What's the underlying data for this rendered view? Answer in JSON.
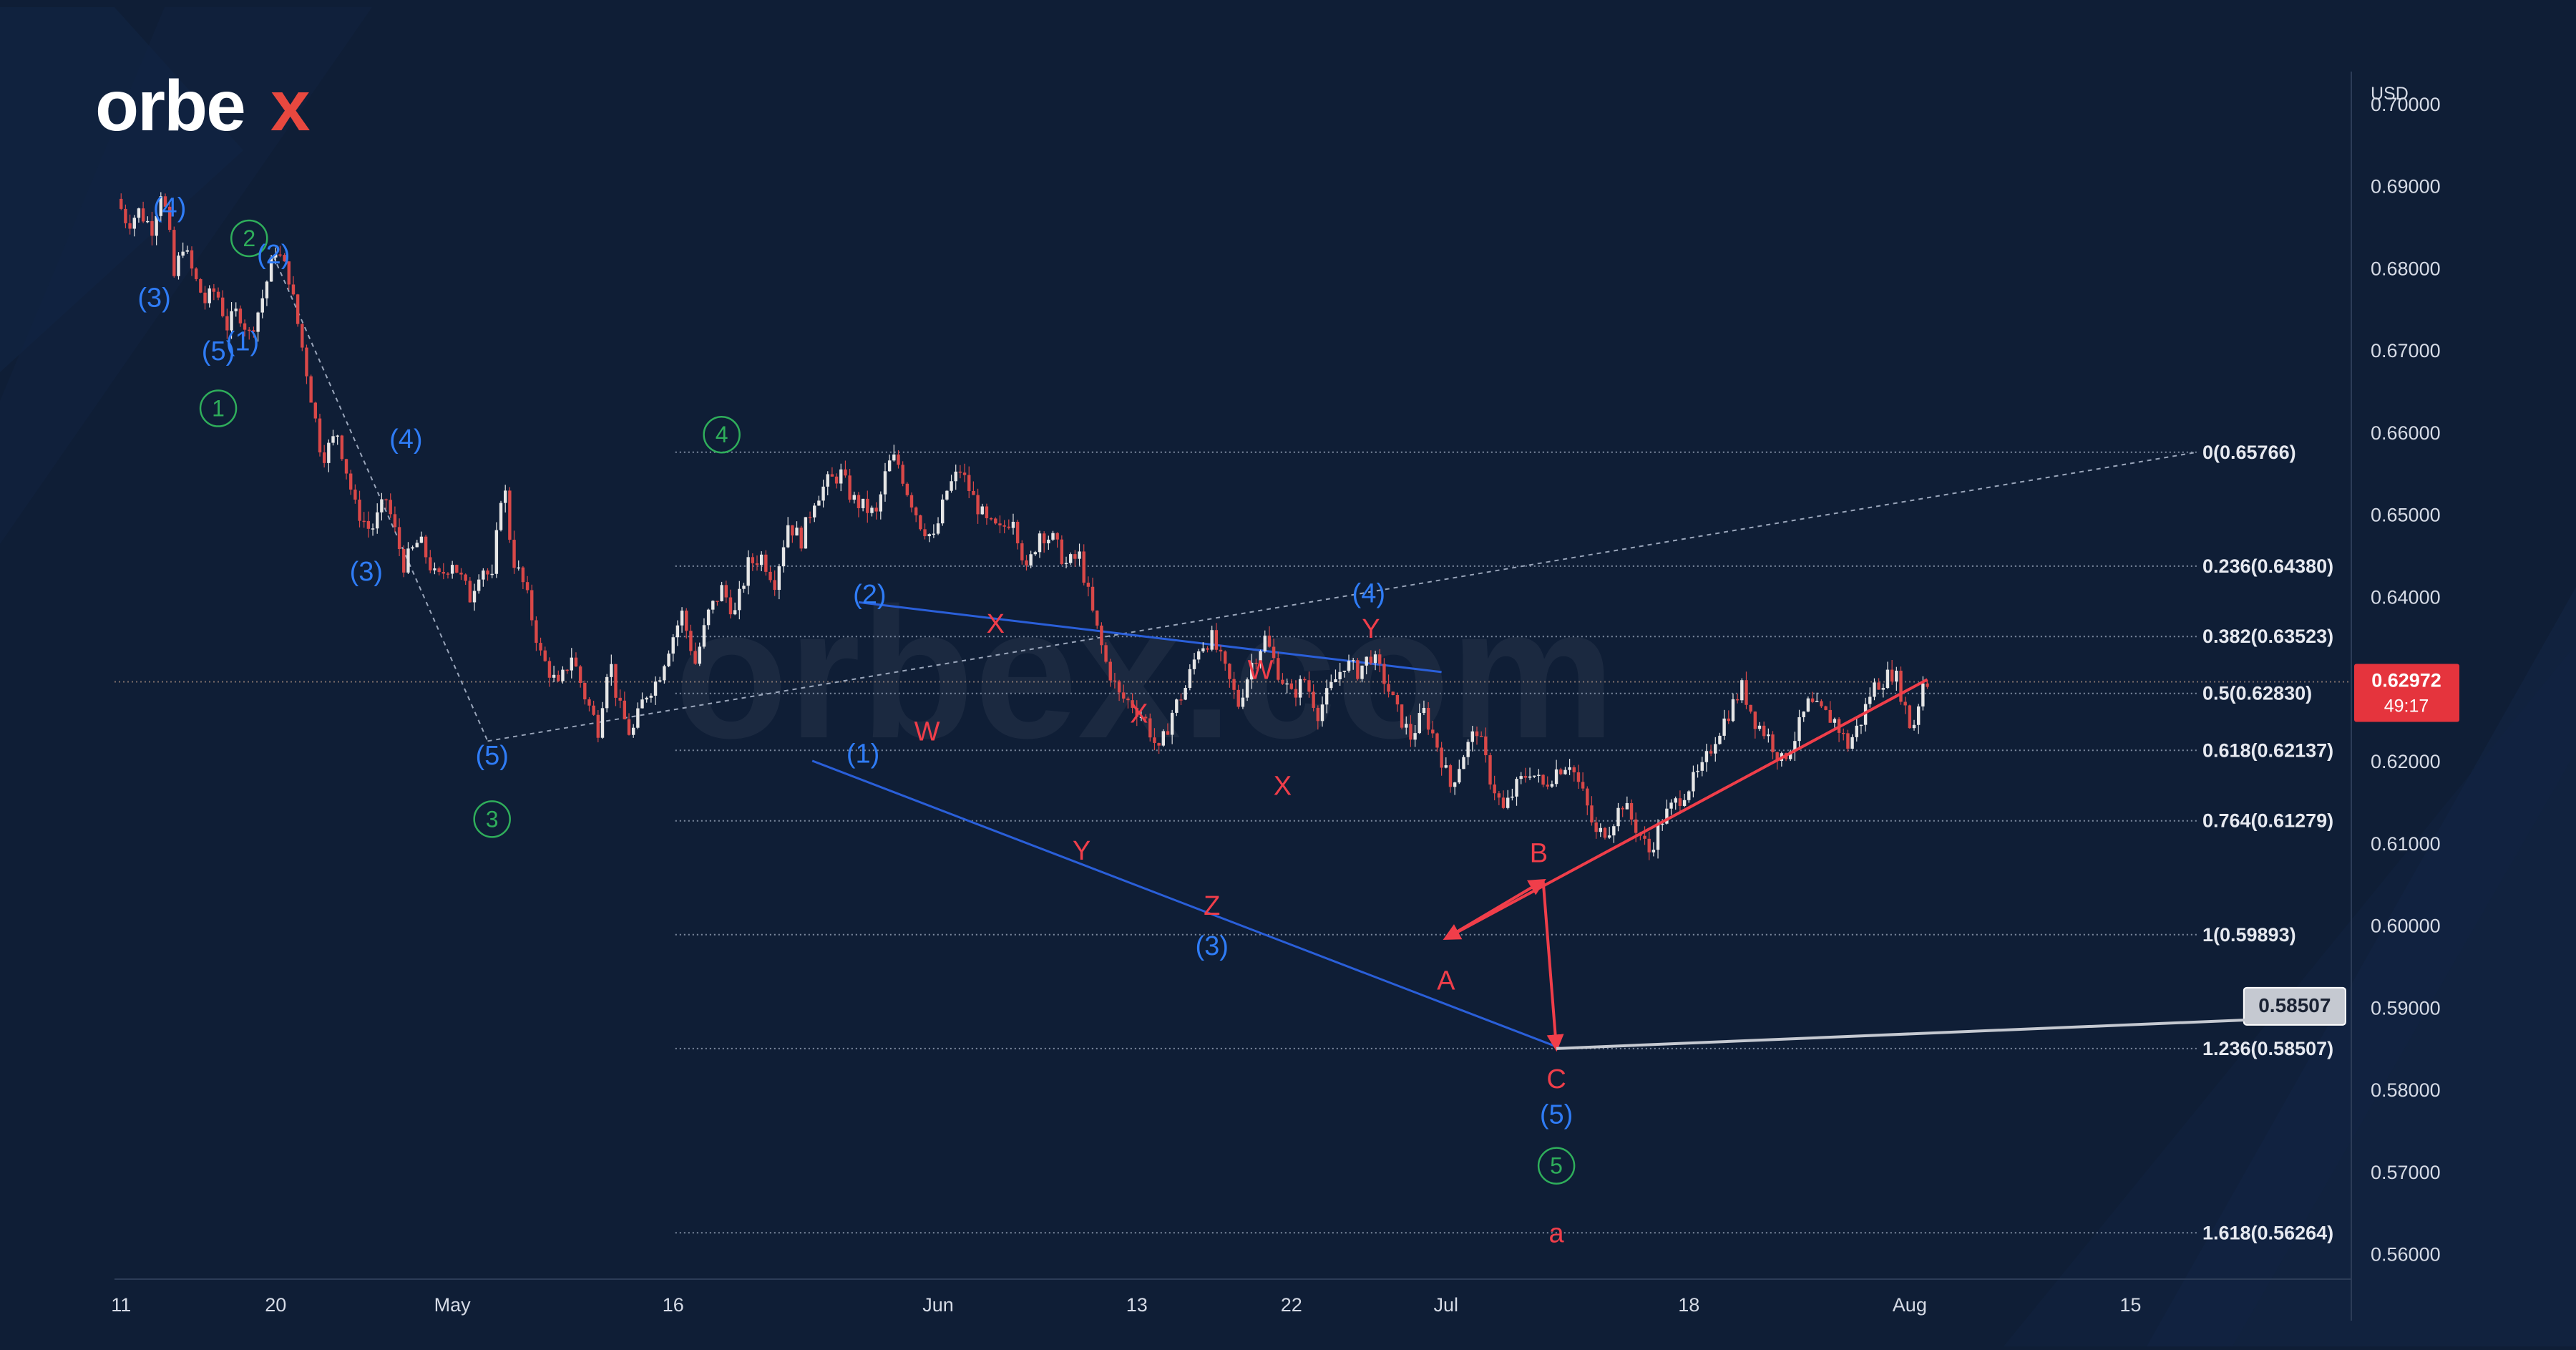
{
  "brand": {
    "logo_text": "orbex",
    "watermark": "orbex.com",
    "accent": "#e8483f"
  },
  "colors": {
    "background": "#0f1e36",
    "text": "#d6dbe6",
    "wave_blue": "#2f7cf6",
    "wave_green": "#2fae5b",
    "wave_red": "#f03e4a",
    "trendline": "#2a5fd9",
    "price_tag": "#e5343d",
    "candle_up": "#e6e6e6",
    "candle_down": "#d94848"
  },
  "chart_data": {
    "type": "candlestick",
    "currency_label": "USD",
    "y_ticks": [
      "0.70000",
      "0.69000",
      "0.68000",
      "0.67000",
      "0.66000",
      "0.65000",
      "0.64000",
      "0.63000",
      "0.62000",
      "0.61000",
      "0.60000",
      "0.59000",
      "0.58000",
      "0.57000",
      "0.56000"
    ],
    "ylim": [
      0.557,
      0.704
    ],
    "x_ticks": [
      {
        "label": "11",
        "t": 0
      },
      {
        "label": "20",
        "t": 7
      },
      {
        "label": "May",
        "t": 15
      },
      {
        "label": "16",
        "t": 25
      },
      {
        "label": "Jun",
        "t": 37
      },
      {
        "label": "13",
        "t": 46
      },
      {
        "label": "22",
        "t": 53
      },
      {
        "label": "Jul",
        "t": 60
      },
      {
        "label": "18",
        "t": 71
      },
      {
        "label": "Aug",
        "t": 81
      },
      {
        "label": "15",
        "t": 91
      }
    ],
    "xlim": [
      -0.3,
      101
    ],
    "price_path": [
      [
        0,
        0.6885
      ],
      [
        0.5,
        0.6855
      ],
      [
        1,
        0.687
      ],
      [
        1.6,
        0.685
      ],
      [
        2,
        0.6895
      ],
      [
        2.3,
        0.686
      ],
      [
        2.6,
        0.679
      ],
      [
        3,
        0.683
      ],
      [
        3.5,
        0.679
      ],
      [
        4,
        0.676
      ],
      [
        4.5,
        0.6775
      ],
      [
        5,
        0.673
      ],
      [
        5.5,
        0.675
      ],
      [
        6,
        0.672
      ],
      [
        6.5,
        0.6755
      ],
      [
        7.2,
        0.6825
      ],
      [
        7.8,
        0.679
      ],
      [
        8.5,
        0.669
      ],
      [
        9.3,
        0.657
      ],
      [
        10,
        0.66
      ],
      [
        10.8,
        0.651
      ],
      [
        11.5,
        0.648
      ],
      [
        12.2,
        0.652
      ],
      [
        13,
        0.644
      ],
      [
        13.7,
        0.647
      ],
      [
        14.5,
        0.642
      ],
      [
        15.2,
        0.6445
      ],
      [
        16,
        0.64
      ],
      [
        16.5,
        0.644
      ],
      [
        17,
        0.642
      ],
      [
        17.5,
        0.655
      ],
      [
        17.9,
        0.645
      ],
      [
        18.5,
        0.641
      ],
      [
        19.2,
        0.633
      ],
      [
        20,
        0.629
      ],
      [
        20.6,
        0.633
      ],
      [
        21.2,
        0.628
      ],
      [
        21.8,
        0.624
      ],
      [
        22.3,
        0.633
      ],
      [
        22.7,
        0.627
      ],
      [
        23.3,
        0.623
      ],
      [
        23.9,
        0.628
      ],
      [
        24.5,
        0.63
      ],
      [
        25,
        0.634
      ],
      [
        25.6,
        0.638
      ],
      [
        26.2,
        0.632
      ],
      [
        26.8,
        0.638
      ],
      [
        27.4,
        0.641
      ],
      [
        28,
        0.638
      ],
      [
        28.6,
        0.644
      ],
      [
        29.2,
        0.645
      ],
      [
        29.8,
        0.642
      ],
      [
        30.4,
        0.649
      ],
      [
        31,
        0.647
      ],
      [
        31.6,
        0.652
      ],
      [
        32.2,
        0.654
      ],
      [
        32.8,
        0.655
      ],
      [
        33.3,
        0.652
      ],
      [
        33.8,
        0.651
      ],
      [
        34.4,
        0.65
      ],
      [
        34.9,
        0.656
      ],
      [
        35.3,
        0.657
      ],
      [
        35.8,
        0.653
      ],
      [
        36.4,
        0.649
      ],
      [
        37,
        0.647
      ],
      [
        37.6,
        0.653
      ],
      [
        38.2,
        0.6555
      ],
      [
        38.8,
        0.652
      ],
      [
        39.4,
        0.649
      ],
      [
        40,
        0.648
      ],
      [
        40.6,
        0.65
      ],
      [
        41.2,
        0.643
      ],
      [
        41.8,
        0.648
      ],
      [
        42.4,
        0.647
      ],
      [
        43,
        0.644
      ],
      [
        43.6,
        0.645
      ],
      [
        44.2,
        0.638
      ],
      [
        44.8,
        0.632
      ],
      [
        45.4,
        0.628
      ],
      [
        46,
        0.627
      ],
      [
        46.6,
        0.625
      ],
      [
        47.2,
        0.621
      ],
      [
        47.8,
        0.626
      ],
      [
        48.4,
        0.629
      ],
      [
        49,
        0.634
      ],
      [
        49.6,
        0.635
      ],
      [
        50.2,
        0.631
      ],
      [
        50.8,
        0.627
      ],
      [
        51.4,
        0.632
      ],
      [
        52,
        0.635
      ],
      [
        52.6,
        0.631
      ],
      [
        53.2,
        0.628
      ],
      [
        53.8,
        0.63
      ],
      [
        54.4,
        0.626
      ],
      [
        55,
        0.629
      ],
      [
        55.6,
        0.632
      ],
      [
        56.2,
        0.631
      ],
      [
        56.8,
        0.633
      ],
      [
        57.4,
        0.63
      ],
      [
        58,
        0.626
      ],
      [
        58.6,
        0.623
      ],
      [
        59.2,
        0.626
      ],
      [
        59.8,
        0.622
      ],
      [
        60.4,
        0.617
      ],
      [
        61,
        0.621
      ],
      [
        61.6,
        0.624
      ],
      [
        62.2,
        0.618
      ],
      [
        62.8,
        0.614
      ],
      [
        63.4,
        0.617
      ],
      [
        64,
        0.619
      ],
      [
        64.6,
        0.617
      ],
      [
        65.2,
        0.619
      ],
      [
        65.8,
        0.62
      ],
      [
        66.4,
        0.616
      ],
      [
        67,
        0.611
      ],
      [
        67.6,
        0.612
      ],
      [
        68.2,
        0.615
      ],
      [
        68.8,
        0.612
      ],
      [
        69.4,
        0.609
      ],
      [
        70,
        0.613
      ],
      [
        70.6,
        0.615
      ],
      [
        71.2,
        0.617
      ],
      [
        71.8,
        0.619
      ],
      [
        72.4,
        0.623
      ],
      [
        73,
        0.626
      ],
      [
        73.6,
        0.629
      ],
      [
        74.2,
        0.625
      ],
      [
        74.8,
        0.623
      ],
      [
        75.4,
        0.62
      ],
      [
        76,
        0.623
      ],
      [
        76.6,
        0.627
      ],
      [
        77.2,
        0.626
      ],
      [
        77.8,
        0.625
      ],
      [
        78.4,
        0.622
      ],
      [
        79,
        0.625
      ],
      [
        79.5,
        0.629
      ],
      [
        80,
        0.63
      ],
      [
        80.5,
        0.631
      ],
      [
        80.9,
        0.6275
      ],
      [
        81.3,
        0.6235
      ],
      [
        81.8,
        0.6297
      ]
    ],
    "fibonacci_levels": [
      {
        "label": "0(0.65766)",
        "value": 0.65766
      },
      {
        "label": "0.236(0.64380)",
        "value": 0.6438
      },
      {
        "label": "0.382(0.63523)",
        "value": 0.63523
      },
      {
        "label": "0.5(0.62830)",
        "value": 0.6283
      },
      {
        "label": "0.618(0.62137)",
        "value": 0.62137
      },
      {
        "label": "0.764(0.61279)",
        "value": 0.61279
      },
      {
        "label": "1(0.59893)",
        "value": 0.59893
      },
      {
        "label": "1.236(0.58507)",
        "value": 0.58507
      },
      {
        "label": "1.618(0.56264)",
        "value": 0.56264
      }
    ],
    "fib_range": {
      "t_start": 25.1,
      "t_end": 94
    },
    "current_price": {
      "value": 0.62972,
      "label": "0.62972",
      "countdown": "49:17"
    },
    "target_tag": {
      "label": "0.58507",
      "t": 95,
      "value": 0.58507
    },
    "wave_labels": [
      {
        "text": "(4)",
        "t": 2.2,
        "p": 0.6875,
        "color": "blue"
      },
      {
        "text": "(3)",
        "t": 1.5,
        "p": 0.6765,
        "color": "blue"
      },
      {
        "text": "(5)",
        "t": 4.4,
        "p": 0.67,
        "color": "blue"
      },
      {
        "text": "1",
        "t": 4.4,
        "p": 0.663,
        "color": "green",
        "circled": true
      },
      {
        "text": "2",
        "t": 5.8,
        "p": 0.6837,
        "color": "green",
        "circled": true
      },
      {
        "text": "(2)",
        "t": 6.9,
        "p": 0.6818,
        "color": "blue"
      },
      {
        "text": "(1)",
        "t": 5.5,
        "p": 0.6712,
        "color": "blue"
      },
      {
        "text": "(4)",
        "t": 12.9,
        "p": 0.6593,
        "color": "blue"
      },
      {
        "text": "(3)",
        "t": 11.1,
        "p": 0.6432,
        "color": "blue"
      },
      {
        "text": "(5)",
        "t": 16.8,
        "p": 0.6208,
        "color": "blue"
      },
      {
        "text": "3",
        "t": 16.8,
        "p": 0.613,
        "color": "green",
        "circled": true
      },
      {
        "text": "4",
        "t": 27.2,
        "p": 0.6598,
        "color": "green",
        "circled": true
      },
      {
        "text": "(2)",
        "t": 33.9,
        "p": 0.6404,
        "color": "blue"
      },
      {
        "text": "(1)",
        "t": 33.6,
        "p": 0.621,
        "color": "blue"
      },
      {
        "text": "W",
        "t": 36.5,
        "p": 0.6237,
        "color": "red"
      },
      {
        "text": "X",
        "t": 39.6,
        "p": 0.6368,
        "color": "red"
      },
      {
        "text": "Y",
        "t": 43.5,
        "p": 0.6092,
        "color": "red"
      },
      {
        "text": "X",
        "t": 46.1,
        "p": 0.6259,
        "color": "red"
      },
      {
        "text": "Z",
        "t": 49.4,
        "p": 0.6025,
        "color": "red"
      },
      {
        "text": "(3)",
        "t": 49.4,
        "p": 0.5976,
        "color": "blue"
      },
      {
        "text": "W",
        "t": 51.6,
        "p": 0.6312,
        "color": "red"
      },
      {
        "text": "X",
        "t": 52.6,
        "p": 0.6171,
        "color": "red"
      },
      {
        "text": "(4)",
        "t": 56.5,
        "p": 0.6405,
        "color": "blue"
      },
      {
        "text": "Y",
        "t": 56.6,
        "p": 0.6362,
        "color": "red"
      },
      {
        "text": "A",
        "t": 60.0,
        "p": 0.5934,
        "color": "red"
      },
      {
        "text": "B",
        "t": 64.2,
        "p": 0.6089,
        "color": "red"
      },
      {
        "text": "C",
        "t": 65.0,
        "p": 0.5814,
        "color": "red"
      },
      {
        "text": "(5)",
        "t": 65.0,
        "p": 0.5771,
        "color": "blue"
      },
      {
        "text": "5",
        "t": 65.0,
        "p": 0.5708,
        "color": "green",
        "circled": true
      },
      {
        "text": "a",
        "t": 65.0,
        "p": 0.5626,
        "color": "red"
      }
    ]
  }
}
